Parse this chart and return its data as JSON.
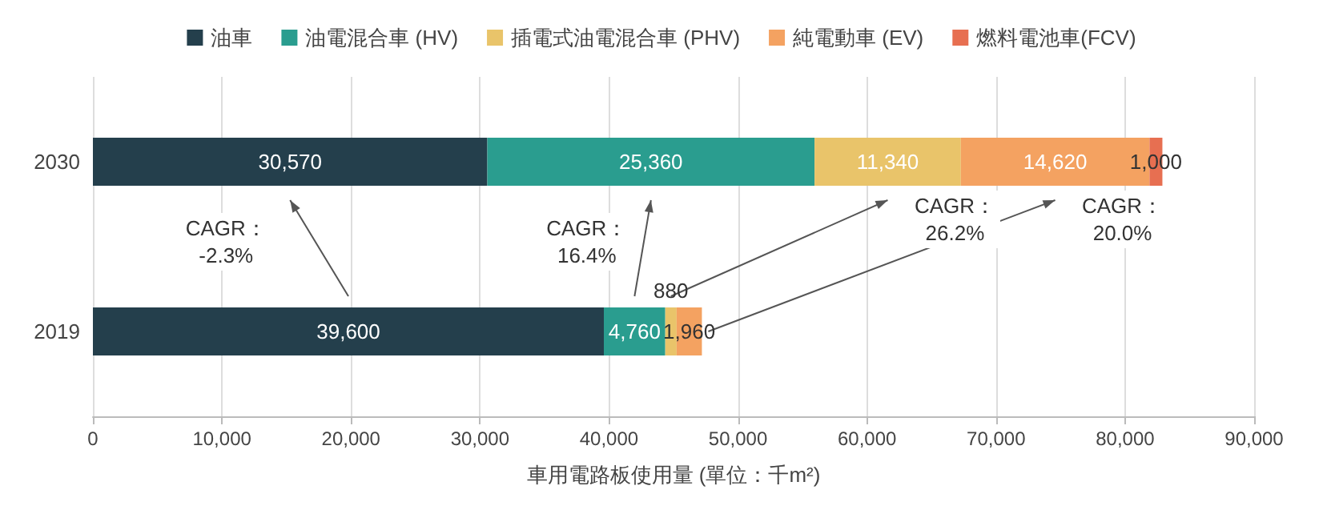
{
  "chart_data": {
    "type": "bar",
    "orientation": "horizontal",
    "stacked": true,
    "categories": [
      "2030",
      "2019"
    ],
    "xlabel": "車用電路板使用量 (單位：千m²)",
    "xlim": [
      0,
      90000
    ],
    "xticks": [
      {
        "value": 0,
        "label": "0"
      },
      {
        "value": 10000,
        "label": "10,000"
      },
      {
        "value": 20000,
        "label": "20,000"
      },
      {
        "value": 30000,
        "label": "30,000"
      },
      {
        "value": 40000,
        "label": "40,000"
      },
      {
        "value": 50000,
        "label": "50,000"
      },
      {
        "value": 60000,
        "label": "60,000"
      },
      {
        "value": 70000,
        "label": "70,000"
      },
      {
        "value": 80000,
        "label": "80,000"
      },
      {
        "value": 90000,
        "label": "90,000"
      }
    ],
    "grid": "x",
    "legend": "top",
    "series": [
      {
        "name": "油車",
        "color": "#243f4c",
        "values": [
          30570,
          39600
        ],
        "value_labels": [
          "30,570",
          "39,600"
        ]
      },
      {
        "name": "油電混合車 (HV)",
        "color": "#2a9d8f",
        "values": [
          25360,
          4760
        ],
        "value_labels": [
          "25,360",
          "4,760"
        ]
      },
      {
        "name": "插電式油電混合車 (PHV)",
        "color": "#e9c46a",
        "values": [
          11340,
          880
        ],
        "value_labels": [
          "11,340",
          "880"
        ]
      },
      {
        "name": "純電動車 (EV)",
        "color": "#f4a261",
        "values": [
          14620,
          1960
        ],
        "value_labels": [
          "14,620",
          "1,960"
        ]
      },
      {
        "name": "燃料電池車(FCV)",
        "color": "#e76f51",
        "values": [
          1000,
          null
        ],
        "value_labels": [
          "1,000",
          null
        ]
      }
    ],
    "annotations": [
      "CAGR：\n-2.3%",
      "CAGR：\n16.4%",
      "CAGR：\n26.2%",
      "CAGR：\n20.0%"
    ]
  }
}
